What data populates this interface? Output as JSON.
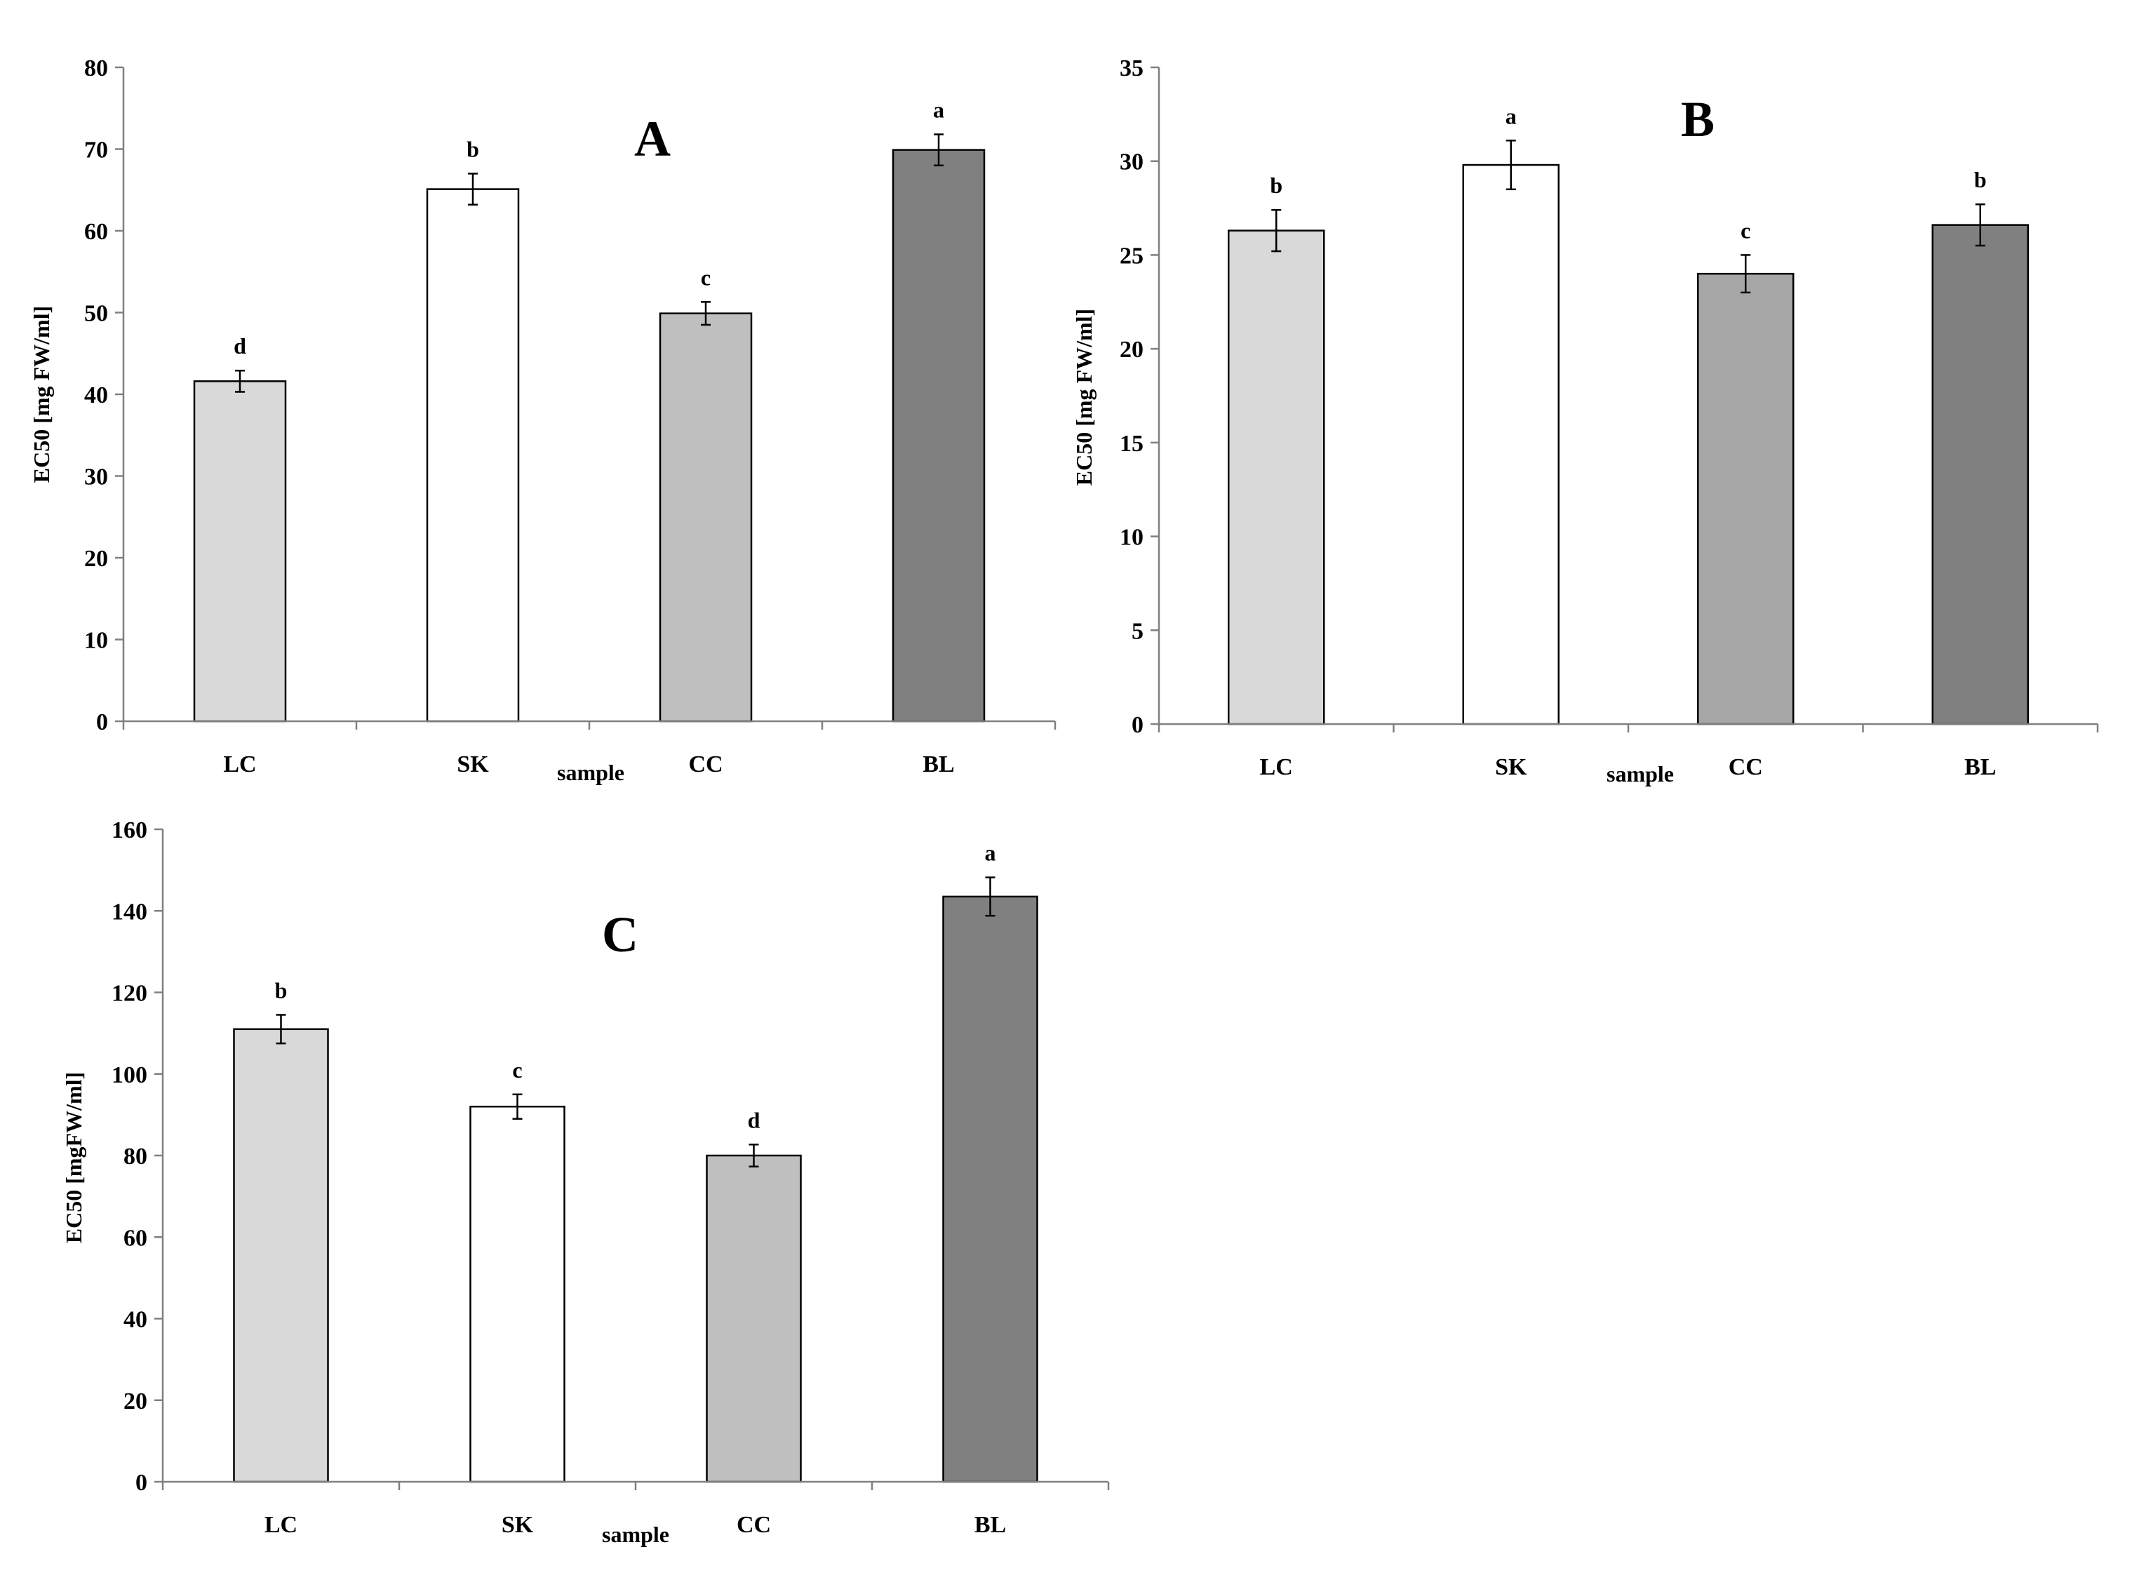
{
  "chart_data": [
    {
      "type": "bar",
      "panel_label": "A",
      "categories": [
        "LC",
        "SK",
        "CC",
        "BL"
      ],
      "values": [
        41.6,
        65.1,
        49.9,
        69.9
      ],
      "errors": [
        1.3,
        1.9,
        1.4,
        1.9
      ],
      "significance": [
        "d",
        "b",
        "c",
        "a"
      ],
      "colors": [
        "#d9d9d9",
        "#ffffff",
        "#bfbfbf",
        "#808080"
      ],
      "xlabel": "sample",
      "ylabel": "EC50 [mg FW/ml]",
      "ylim": [
        0,
        80
      ],
      "yticks": [
        0,
        10,
        20,
        30,
        40,
        50,
        60,
        70,
        80
      ],
      "grid": false
    },
    {
      "type": "bar",
      "panel_label": "B",
      "categories": [
        "LC",
        "SK",
        "CC",
        "BL"
      ],
      "values": [
        26.3,
        29.8,
        24.0,
        26.6
      ],
      "errors": [
        1.1,
        1.3,
        1.0,
        1.1
      ],
      "significance": [
        "b",
        "a",
        "c",
        "b"
      ],
      "colors": [
        "#d9d9d9",
        "#ffffff",
        "#a6a6a6",
        "#808080"
      ],
      "xlabel": "sample",
      "ylabel": "EC50 [mg FW/ml]",
      "ylim": [
        0,
        35
      ],
      "yticks": [
        0,
        5,
        10,
        15,
        20,
        25,
        30,
        35
      ],
      "grid": false
    },
    {
      "type": "bar",
      "panel_label": "C",
      "categories": [
        "LC",
        "SK",
        "CC",
        "BL"
      ],
      "values": [
        111,
        92,
        80,
        143.5
      ],
      "errors": [
        3.5,
        3.0,
        2.7,
        4.7
      ],
      "significance": [
        "b",
        "c",
        "d",
        "a"
      ],
      "colors": [
        "#d9d9d9",
        "#ffffff",
        "#bfbfbf",
        "#808080"
      ],
      "xlabel": "sample",
      "ylabel": "EC50 [mgFW/ml]",
      "ylim": [
        0,
        160
      ],
      "yticks": [
        0,
        20,
        40,
        60,
        80,
        100,
        120,
        140,
        160
      ],
      "grid": false
    }
  ]
}
